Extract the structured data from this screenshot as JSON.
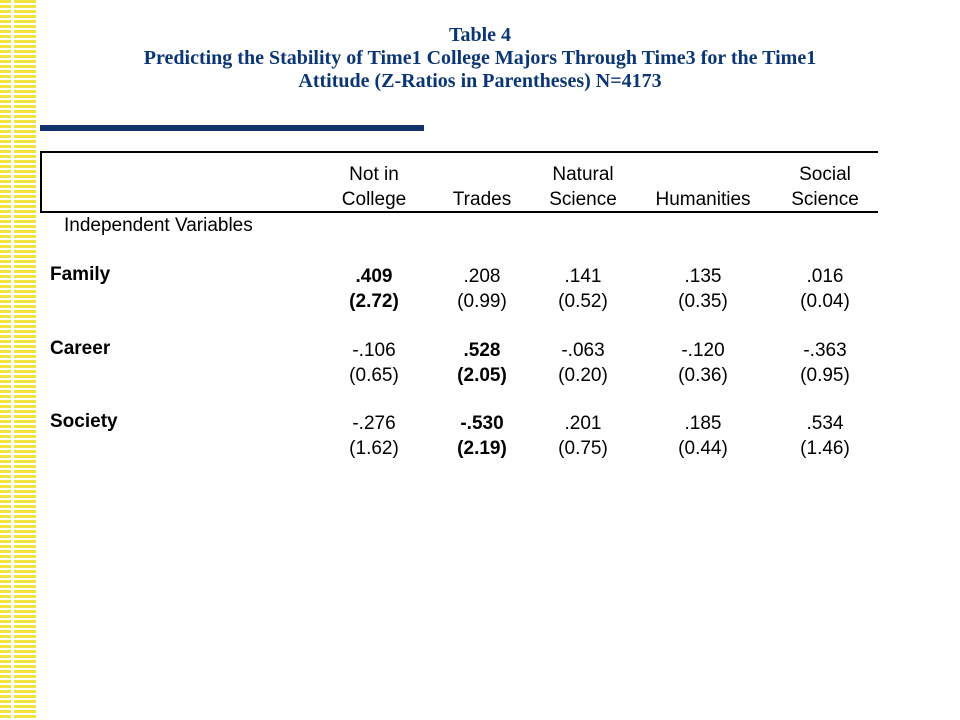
{
  "title": {
    "line1": "Table 4",
    "line2": "Predicting the Stability of Time1 College Majors Through Time3 for the Time1",
    "line3": "Attitude (Z-Ratios in Parentheses) N=4173"
  },
  "table": {
    "stub_label": "Independent Variables",
    "columns": [
      {
        "line1": "Not in",
        "line2": "College"
      },
      {
        "line1": "",
        "line2": "Trades"
      },
      {
        "line1": "Natural",
        "line2": "Science"
      },
      {
        "line1": "",
        "line2": "Humanities"
      },
      {
        "line1": "Social",
        "line2": "Science"
      }
    ],
    "rows": [
      {
        "label": "Family",
        "coef": [
          ".409",
          ".208",
          ".141",
          ".135",
          ".016"
        ],
        "z": [
          "(2.72)",
          "(0.99)",
          "(0.52)",
          "(0.35)",
          "(0.04)"
        ],
        "bold": [
          true,
          false,
          false,
          false,
          false
        ]
      },
      {
        "label": "Career",
        "coef": [
          "-.106",
          ".528",
          "-.063",
          "-.120",
          "-.363"
        ],
        "z": [
          "(0.65)",
          "(2.05)",
          "(0.20)",
          "(0.36)",
          "(0.95)"
        ],
        "bold": [
          false,
          true,
          false,
          false,
          false
        ]
      },
      {
        "label": "Society",
        "coef": [
          "-.276",
          "-.530",
          ".201",
          ".185",
          ".534"
        ],
        "z": [
          "(1.62)",
          "(2.19)",
          "(0.75)",
          "(0.44)",
          "(1.46)"
        ],
        "bold": [
          false,
          true,
          false,
          false,
          false
        ]
      }
    ]
  }
}
